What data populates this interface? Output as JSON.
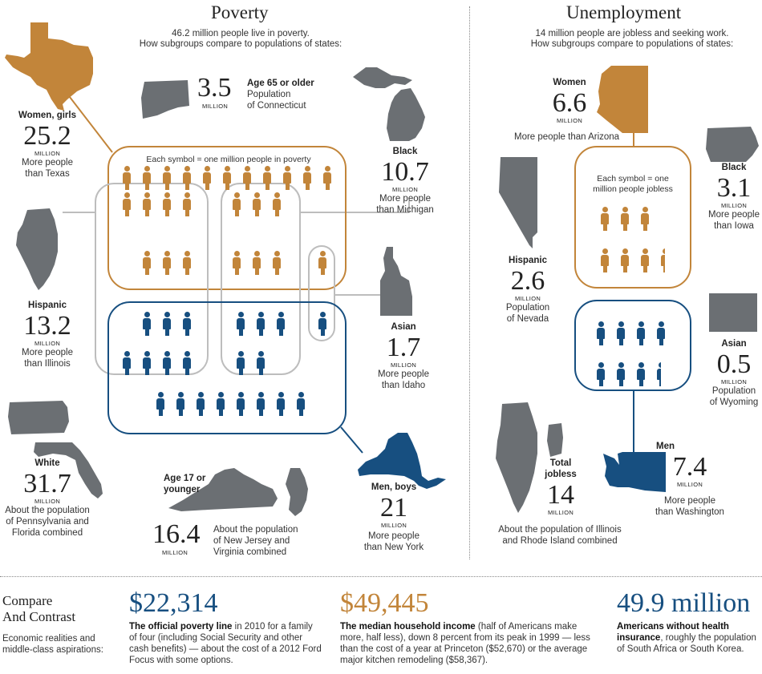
{
  "colors": {
    "orange": "#c2853a",
    "blue": "#174f80",
    "gray": "#6b6f73",
    "lightgray": "#bdbdbd"
  },
  "poverty": {
    "title": "Poverty",
    "subtitle1": "46.2 million people live in poverty.",
    "subtitle2": "How subgroups compare to populations of states:",
    "symbol_caption": "Each symbol = one million people in poverty",
    "million": "MILLION",
    "women": {
      "label": "Women, girls",
      "value": "25.2",
      "desc1": "More people",
      "desc2": "than Texas",
      "icon": "texas-shape-icon"
    },
    "elderly": {
      "label": "Age 65 or older",
      "value": "3.5",
      "desc1": "Population",
      "desc2": "of Connecticut",
      "icon": "connecticut-shape-icon"
    },
    "black": {
      "label": "Black",
      "value": "10.7",
      "desc1": "More people",
      "desc2": "than Michigan",
      "icon": "michigan-shape-icon"
    },
    "hispanic": {
      "label": "Hispanic",
      "value": "13.2",
      "desc1": "More people",
      "desc2": "than Illinois",
      "icon": "illinois-shape-icon"
    },
    "asian": {
      "label": "Asian",
      "value": "1.7",
      "desc1": "More people",
      "desc2": "than Idaho",
      "icon": "idaho-shape-icon"
    },
    "white": {
      "label": "White",
      "value": "31.7",
      "desc1": "About the population",
      "desc2": "of Pennsylvania and",
      "desc3": "Florida combined",
      "icon": "pennsylvania-florida-shape-icon"
    },
    "young": {
      "label1": "Age 17 or",
      "label2": "younger",
      "value": "16.4",
      "desc1": "About the population",
      "desc2": "of New Jersey and",
      "desc3": "Virginia combined",
      "icon": "virginia-new-jersey-shape-icon"
    },
    "men": {
      "label": "Men, boys",
      "value": "21",
      "desc1": "More people",
      "desc2": "than New York",
      "icon": "new-york-shape-icon"
    }
  },
  "unemployment": {
    "title": "Unemployment",
    "subtitle1": "14 million people are jobless and seeking work.",
    "subtitle2": "How subgroups compare to populations of states:",
    "symbol_caption1": "Each symbol = one",
    "symbol_caption2": "million people jobless",
    "million": "MILLION",
    "women": {
      "label": "Women",
      "value": "6.6",
      "desc": "More people than Arizona",
      "icon": "arizona-shape-icon"
    },
    "black": {
      "label": "Black",
      "value": "3.1",
      "desc1": "More people",
      "desc2": "than Iowa",
      "icon": "iowa-shape-icon"
    },
    "hispanic": {
      "label": "Hispanic",
      "value": "2.6",
      "desc1": "Population",
      "desc2": "of Nevada",
      "icon": "nevada-shape-icon"
    },
    "asian": {
      "label": "Asian",
      "value": "0.5",
      "desc1": "Population",
      "desc2": "of Wyoming",
      "icon": "wyoming-shape-icon"
    },
    "total": {
      "label1": "Total",
      "label2": "jobless",
      "value": "14",
      "desc1": "About the population of Illinois",
      "desc2": "and Rhode Island combined",
      "icon": "illinois-rhode-island-shape-icon"
    },
    "men": {
      "label": "Men",
      "value": "7.4",
      "desc1": "More people",
      "desc2": "than Washington",
      "icon": "washington-shape-icon"
    }
  },
  "compare": {
    "title1": "Compare",
    "title2": "And Contrast",
    "desc1": "Economic realities and",
    "desc2": "middle-class aspirations:",
    "items": [
      {
        "value": "$22,314",
        "bold": "The official poverty line",
        "text": " in 2010 for a family of four (including Social Security and other cash benefits) — about the cost of a 2012 Ford Focus with some options."
      },
      {
        "value": "$49,445",
        "bold": "The median household income",
        "text": " (half of Americans make more, half less), down 8 percent from its peak in 1999 — less than the cost of a year at Princeton ($52,670) or the average major kitchen remodeling ($58,367)."
      },
      {
        "value": "49.9 million",
        "bold": "Americans without health insurance",
        "text": ", roughly the population of South Africa or South Korea."
      }
    ]
  }
}
